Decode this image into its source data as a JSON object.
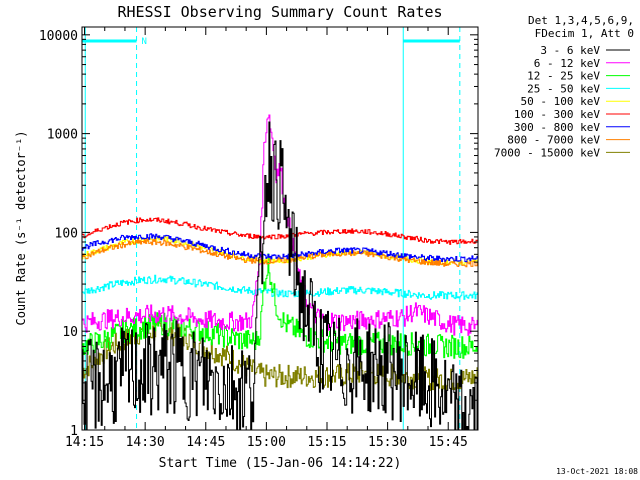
{
  "chart_data": {
    "type": "line",
    "title": "RHESSI Observing Summary Count Rates",
    "xlabel": "Start Time (15-Jan-06 14:14:22)",
    "ylabel": "Count Rate (s⁻¹ detector⁻¹)",
    "yscale": "log",
    "ylim": [
      1,
      12000
    ],
    "xlim_minutes": [
      0,
      98
    ],
    "x_ticks": [
      "14:15",
      "14:30",
      "14:45",
      "15:00",
      "15:15",
      "15:30",
      "15:45"
    ],
    "y_ticks": [
      "1",
      "10",
      "100",
      "1000",
      "10000"
    ],
    "legend_header": [
      "Det 1,3,4,5,6,9,",
      "FDecim 1, Att 0"
    ],
    "legend_position": "right",
    "footer_date": "13-Oct-2021 18:08",
    "flag_label": "N",
    "series": [
      {
        "name": "3 - 6 keV",
        "color": "#000000",
        "x": [
          0,
          5,
          10,
          15,
          20,
          25,
          28,
          30,
          32,
          35,
          38,
          40,
          42,
          44,
          45,
          46,
          47,
          48,
          49,
          50,
          52,
          54,
          56,
          58,
          60,
          62,
          64,
          66,
          68,
          70,
          72,
          74,
          76,
          78,
          80,
          82,
          84,
          86,
          88,
          90,
          92,
          94,
          96,
          98
        ],
        "y": [
          2.5,
          3,
          3.5,
          4,
          4.2,
          4,
          3.6,
          3.4,
          3.2,
          3,
          2.8,
          2.7,
          2.6,
          30,
          200,
          600,
          400,
          300,
          350,
          150,
          60,
          25,
          15,
          8,
          6,
          5,
          4.5,
          4.5,
          4.5,
          4.5,
          4.3,
          4.2,
          4,
          3.8,
          3.5,
          3.2,
          3,
          2.8,
          2.5,
          2,
          1.5,
          1.5,
          1.6,
          1.5
        ]
      },
      {
        "name": "6 - 12 keV",
        "color": "#ff00ff",
        "x": [
          0,
          5,
          10,
          15,
          20,
          25,
          30,
          35,
          40,
          42,
          44,
          45,
          46,
          47,
          48,
          49,
          50,
          52,
          54,
          56,
          58,
          60,
          65,
          70,
          75,
          80,
          82,
          84,
          86,
          88,
          90,
          92,
          94,
          96,
          98
        ],
        "y": [
          12,
          13,
          14,
          14.5,
          15,
          14,
          13,
          12.5,
          12.5,
          13,
          60,
          800,
          1700,
          900,
          400,
          450,
          200,
          80,
          30,
          18,
          14,
          13,
          12.5,
          13,
          13.5,
          14,
          16,
          15,
          14,
          13,
          12,
          11.5,
          11.5,
          11,
          11
        ]
      },
      {
        "name": "12 - 25 keV",
        "color": "#00ff00",
        "x": [
          0,
          5,
          10,
          15,
          20,
          25,
          30,
          35,
          40,
          43,
          44,
          45,
          46,
          47,
          48,
          50,
          55,
          60,
          65,
          70,
          75,
          80,
          85,
          90,
          95,
          98
        ],
        "y": [
          7,
          8,
          10,
          11,
          12,
          11,
          10,
          9,
          8,
          8,
          10,
          30,
          50,
          30,
          18,
          12,
          9,
          8,
          7.5,
          7.5,
          7.5,
          7.5,
          7.2,
          7,
          7,
          7
        ]
      },
      {
        "name": "25 - 50 keV",
        "color": "#00ffff",
        "x": [
          0,
          5,
          10,
          15,
          20,
          25,
          30,
          35,
          40,
          45,
          50,
          55,
          60,
          65,
          70,
          75,
          80,
          85,
          90,
          95,
          98
        ],
        "y": [
          25,
          28,
          31,
          33,
          34,
          32,
          30,
          28,
          26,
          25,
          24,
          24,
          25,
          26,
          26,
          25,
          24,
          23,
          23,
          23,
          23
        ]
      },
      {
        "name": "50 - 100 keV",
        "color": "#ffff00",
        "x": [
          0,
          5,
          10,
          15,
          20,
          25,
          30,
          35,
          40,
          45,
          50,
          55,
          60,
          65,
          70,
          75,
          80,
          85,
          90,
          95,
          98
        ],
        "y": [
          58,
          68,
          78,
          85,
          87,
          80,
          70,
          62,
          55,
          52,
          52,
          56,
          60,
          62,
          62,
          58,
          54,
          51,
          50,
          50,
          51
        ]
      },
      {
        "name": "100 - 300 keV",
        "color": "#ff0000",
        "x": [
          0,
          5,
          10,
          15,
          20,
          25,
          30,
          35,
          40,
          45,
          50,
          55,
          60,
          65,
          70,
          75,
          80,
          85,
          90,
          95,
          98
        ],
        "y": [
          90,
          110,
          125,
          135,
          132,
          122,
          110,
          100,
          93,
          90,
          92,
          97,
          100,
          103,
          102,
          97,
          90,
          83,
          80,
          80,
          83
        ]
      },
      {
        "name": "300 - 800 keV",
        "color": "#0000ff",
        "x": [
          0,
          5,
          10,
          15,
          20,
          25,
          30,
          35,
          40,
          45,
          50,
          55,
          60,
          65,
          70,
          75,
          80,
          85,
          90,
          95,
          98
        ],
        "y": [
          70,
          80,
          88,
          92,
          90,
          82,
          74,
          66,
          60,
          57,
          57,
          60,
          64,
          66,
          65,
          62,
          58,
          55,
          54,
          54,
          55
        ]
      },
      {
        "name": "800 - 7000 keV",
        "color": "#ff8000",
        "x": [
          0,
          5,
          10,
          15,
          20,
          25,
          30,
          35,
          40,
          45,
          50,
          55,
          60,
          65,
          70,
          75,
          80,
          85,
          90,
          95,
          98
        ],
        "y": [
          56,
          66,
          75,
          80,
          79,
          72,
          65,
          58,
          53,
          51,
          52,
          56,
          60,
          62,
          61,
          57,
          53,
          50,
          48,
          48,
          49
        ]
      },
      {
        "name": "7000 - 15000 keV",
        "color": "#808000",
        "x": [
          0,
          3,
          6,
          10,
          14,
          18,
          22,
          26,
          30,
          34,
          38,
          42,
          45,
          50,
          55,
          60,
          65,
          70,
          75,
          80,
          85,
          90,
          95,
          98
        ],
        "y": [
          4,
          5,
          6.5,
          8,
          9.5,
          10,
          9.5,
          8.5,
          7,
          6,
          5,
          4,
          3.5,
          3.5,
          3.5,
          3.5,
          3.6,
          3.8,
          3.6,
          3.5,
          3.3,
          3.2,
          3.3,
          3.5
        ]
      }
    ]
  }
}
